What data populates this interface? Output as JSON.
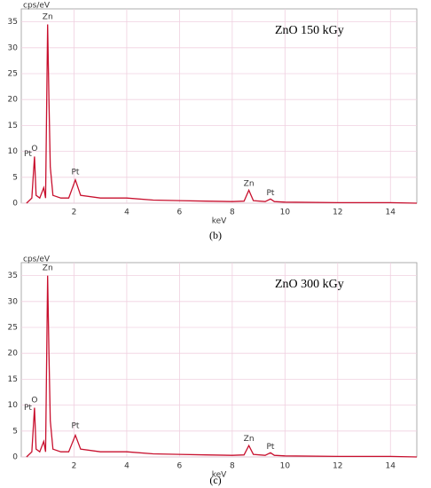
{
  "chart_data": [
    {
      "type": "line",
      "title": "ZnO 150 kGy",
      "caption": "(b)",
      "ylabel": "cps/eV",
      "xlabel": "keV",
      "color": "#c8102e",
      "grid": true,
      "x": [
        0.2,
        0.3,
        0.4,
        0.5,
        0.56,
        0.7,
        0.85,
        0.92,
        1.0,
        1.05,
        1.1,
        1.2,
        1.5,
        1.8,
        2.05,
        2.25,
        3.0,
        4.0,
        5.0,
        6.0,
        7.0,
        8.0,
        8.45,
        8.63,
        8.8,
        9.25,
        9.45,
        9.6,
        10.0,
        12.0,
        14.0,
        15.0
      ],
      "values": [
        0,
        0.5,
        1,
        9,
        1.5,
        1,
        3,
        1,
        34.5,
        20,
        7,
        1.5,
        1,
        1,
        4.5,
        1.5,
        1,
        1,
        0.6,
        0.5,
        0.4,
        0.3,
        0.4,
        2.5,
        0.5,
        0.3,
        0.8,
        0.3,
        0.2,
        0.1,
        0.1,
        0
      ],
      "annotations": [
        {
          "label": "Zn",
          "x": 1.0,
          "y": 36
        },
        {
          "label": "O",
          "x": 0.5,
          "y": 10.5
        },
        {
          "label": "Pt",
          "x": 0.25,
          "y": 9.5
        },
        {
          "label": "Pt",
          "x": 2.05,
          "y": 6
        },
        {
          "label": "Zn",
          "x": 8.63,
          "y": 3.8
        },
        {
          "label": "Pt",
          "x": 9.45,
          "y": 2
        }
      ],
      "xlim": [
        0,
        15
      ],
      "xticks": [
        2,
        4,
        6,
        8,
        10,
        12,
        14
      ],
      "ylim": [
        0,
        37.5
      ],
      "yticks": [
        0,
        5,
        10,
        15,
        20,
        25,
        30,
        35
      ]
    },
    {
      "type": "line",
      "title": "ZnO 300 kGy",
      "caption": "(c)",
      "ylabel": "cps/eV",
      "xlabel": "keV",
      "color": "#c8102e",
      "grid": true,
      "x": [
        0.2,
        0.3,
        0.4,
        0.5,
        0.56,
        0.7,
        0.85,
        0.92,
        1.0,
        1.05,
        1.1,
        1.2,
        1.5,
        1.8,
        2.05,
        2.25,
        3.0,
        4.0,
        5.0,
        6.0,
        7.0,
        8.0,
        8.45,
        8.63,
        8.8,
        9.25,
        9.45,
        9.6,
        10.0,
        12.0,
        14.0,
        15.0
      ],
      "values": [
        0,
        0.5,
        1,
        9.5,
        1.5,
        1,
        3,
        1,
        35,
        20,
        7,
        1.5,
        1,
        1,
        4.2,
        1.5,
        1,
        1,
        0.6,
        0.5,
        0.4,
        0.3,
        0.4,
        2.2,
        0.5,
        0.3,
        0.8,
        0.3,
        0.2,
        0.1,
        0.1,
        0
      ],
      "annotations": [
        {
          "label": "Zn",
          "x": 1.0,
          "y": 36.5
        },
        {
          "label": "O",
          "x": 0.5,
          "y": 11
        },
        {
          "label": "Pt",
          "x": 0.25,
          "y": 9.5
        },
        {
          "label": "Pt",
          "x": 2.05,
          "y": 6
        },
        {
          "label": "Zn",
          "x": 8.63,
          "y": 3.5
        },
        {
          "label": "Pt",
          "x": 9.45,
          "y": 2
        }
      ],
      "xlim": [
        0,
        15
      ],
      "xticks": [
        2,
        4,
        6,
        8,
        10,
        12,
        14
      ],
      "ylim": [
        0,
        37.5
      ],
      "yticks": [
        0,
        5,
        10,
        15,
        20,
        25,
        30,
        35
      ]
    }
  ]
}
